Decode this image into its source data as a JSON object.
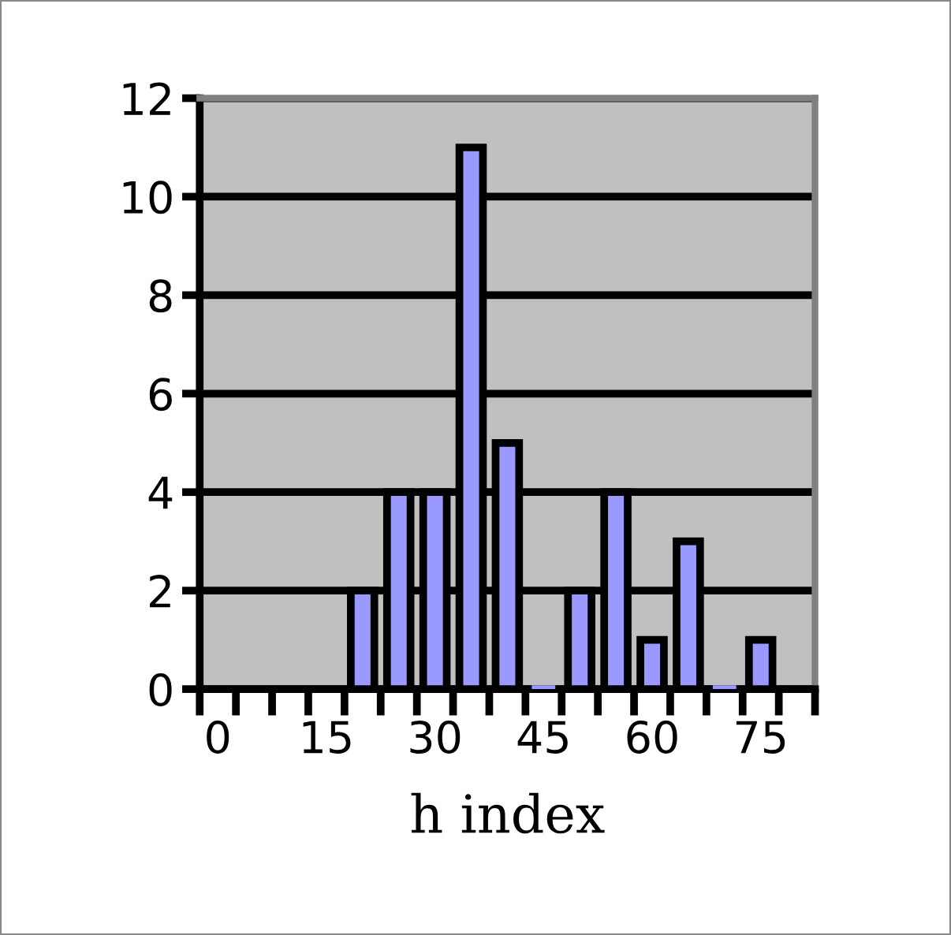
{
  "chart_data": {
    "type": "bar",
    "xlabel": "h index",
    "categories": [
      "0",
      null,
      null,
      "15",
      null,
      null,
      "30",
      null,
      null,
      "45",
      null,
      null,
      "60",
      null,
      null,
      "75",
      null
    ],
    "values": [
      null,
      null,
      null,
      null,
      2,
      4,
      4,
      11,
      5,
      0,
      2,
      4,
      1,
      3,
      0,
      1,
      null
    ],
    "color": "#9999ff",
    "ylim": [
      0,
      12
    ],
    "yticks": [
      0,
      2,
      4,
      6,
      8,
      10,
      12
    ],
    "grid": "y",
    "legend": false
  }
}
